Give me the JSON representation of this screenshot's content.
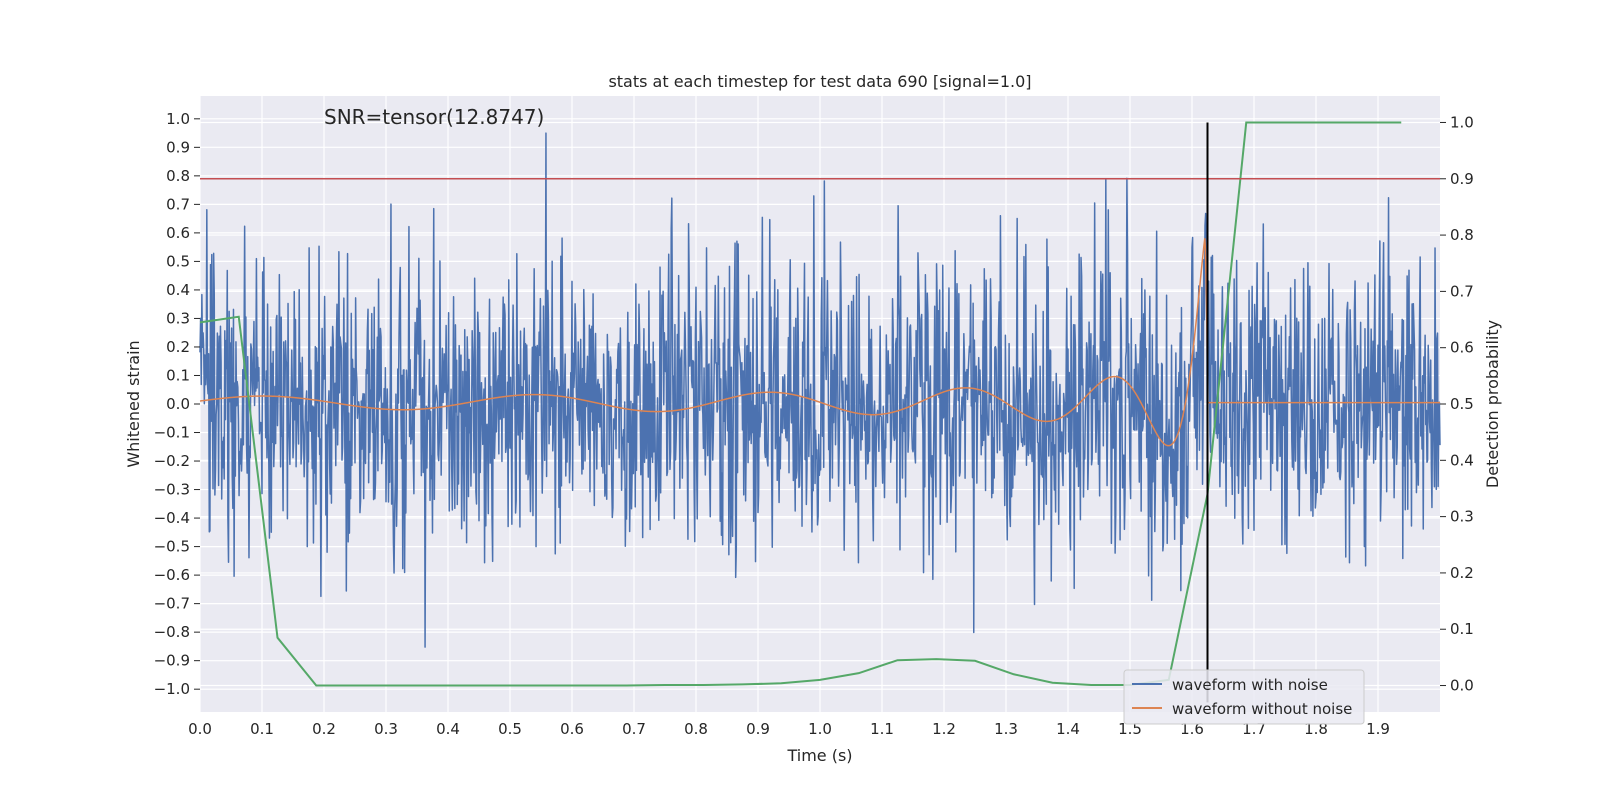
{
  "chart_data": {
    "type": "line",
    "title": "stats at each timestep for test data 690 [signal=1.0]",
    "xlabel": "Time (s)",
    "ylabel_left": "Whitened strain",
    "ylabel_right": "Detection probability",
    "xlim": [
      0.0,
      2.0
    ],
    "ylim_left": [
      -1.08,
      1.08
    ],
    "ylim_right": [
      -0.047,
      1.047
    ],
    "x_ticks": [
      0.0,
      0.1,
      0.2,
      0.3,
      0.4,
      0.5,
      0.6,
      0.7,
      0.8,
      0.9,
      1.0,
      1.1,
      1.2,
      1.3,
      1.4,
      1.5,
      1.6,
      1.7,
      1.8,
      1.9
    ],
    "y_ticks_left": [
      -1.0,
      -0.9,
      -0.8,
      -0.7,
      -0.6,
      -0.5,
      -0.4,
      -0.3,
      -0.2,
      -0.1,
      0.0,
      0.1,
      0.2,
      0.3,
      0.4,
      0.5,
      0.6,
      0.7,
      0.8,
      0.9,
      1.0
    ],
    "y_ticks_right": [
      0.0,
      0.1,
      0.2,
      0.3,
      0.4,
      0.5,
      0.6,
      0.7,
      0.8,
      0.9,
      1.0
    ],
    "annotation": "SNR=tensor(12.8747)",
    "threshold": {
      "axis": "right",
      "value": 0.9,
      "color": "#c44e52"
    },
    "event_line": {
      "x": 1.625,
      "color": "#000000"
    },
    "series": [
      {
        "name": "waveform with noise",
        "axis": "left",
        "color": "#4c72b0",
        "description": "noisy whitened strain, dense random fluctuations within about ±0.9"
      },
      {
        "name": "waveform without noise",
        "axis": "left",
        "color": "#dd8452",
        "description": "chirp signal: amplitude grows from ~0.02 to ~0.8 and frequency rises until merger near t=1.625 s, then ~0"
      },
      {
        "name": "detection probability",
        "axis": "right",
        "color": "#55a868",
        "x": [
          0.0,
          0.0625,
          0.125,
          0.1875,
          0.25,
          0.3125,
          0.375,
          0.4375,
          0.5,
          0.5625,
          0.625,
          0.6875,
          0.75,
          0.8125,
          0.875,
          0.9375,
          1.0,
          1.0625,
          1.125,
          1.1875,
          1.25,
          1.3125,
          1.375,
          1.4375,
          1.5,
          1.5625,
          1.625,
          1.6875,
          1.75,
          1.8125,
          1.875,
          1.9375
        ],
        "values": [
          0.645,
          0.655,
          0.085,
          0.0,
          0.0,
          0.0,
          0.0,
          0.0,
          0.0,
          0.0,
          0.0,
          0.0,
          0.001,
          0.001,
          0.002,
          0.004,
          0.01,
          0.022,
          0.045,
          0.047,
          0.044,
          0.02,
          0.005,
          0.001,
          0.001,
          0.01,
          0.34,
          1.0,
          1.0,
          1.0,
          1.0,
          1.0
        ]
      }
    ],
    "legend": {
      "position": "lower-right",
      "entries": [
        "waveform with noise",
        "waveform without noise"
      ]
    }
  }
}
